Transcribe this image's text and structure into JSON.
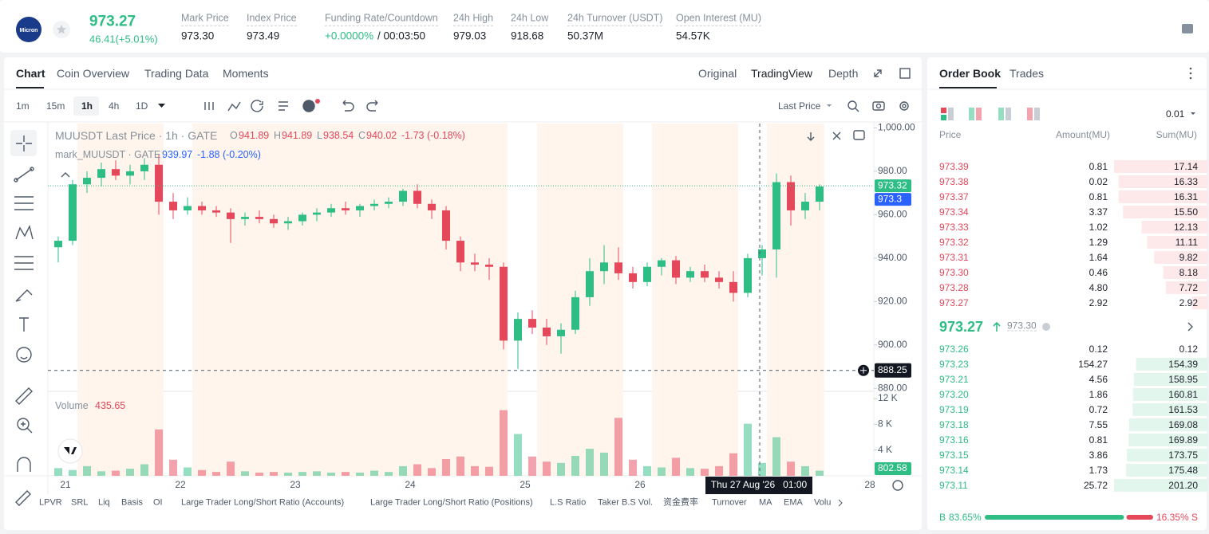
{
  "header": {
    "logo": "Micron",
    "price": "973.27",
    "change": "46.41(+5.01%)",
    "stats": [
      {
        "label": "Mark Price",
        "value": "973.30"
      },
      {
        "label": "Index Price",
        "value": "973.49"
      },
      {
        "label": "Funding Rate/Countdown",
        "value": "+0.0000%",
        "extra": "/ 00:03:50"
      },
      {
        "label": "24h High",
        "value": "979.03"
      },
      {
        "label": "24h Low",
        "value": "918.68"
      },
      {
        "label": "24h Turnover (USDT)",
        "value": "50.37M"
      },
      {
        "label": "Open Interest (MU)",
        "value": "54.57K"
      }
    ]
  },
  "chart_tabs": [
    "Chart",
    "Coin Overview",
    "Trading Data",
    "Moments"
  ],
  "view_tabs": [
    "Original",
    "TradingView",
    "Depth"
  ],
  "intervals": [
    "1m",
    "15m",
    "1h",
    "4h",
    "1D"
  ],
  "active_interval": "1h",
  "price_source": "Last Price",
  "chart": {
    "type": "candlestick",
    "legend": {
      "symbol": "MUUSDT Last Price · 1h · GATE",
      "ohlc_labels": [
        "O",
        "H",
        "L",
        "C"
      ],
      "ohlc": [
        "941.89",
        "941.89",
        "938.54",
        "940.02"
      ],
      "change": "-1.73 (-0.18%)",
      "mark_symbol": "mark_MUUSDT · GATE",
      "mark_value": "939.97",
      "mark_change": "-1.88 (-0.20%)"
    },
    "volume_title": "Volume",
    "volume_value": "435.65",
    "up_color": "#2dbd85",
    "down_color": "#e5475b",
    "grid": false,
    "ylim": [
      879,
      1002
    ],
    "yticks": [
      {
        "value": 880,
        "label": "880.00"
      },
      {
        "value": 900,
        "label": "900.00"
      },
      {
        "value": 920,
        "label": "920.00"
      },
      {
        "value": 940,
        "label": "940.00"
      },
      {
        "value": 960,
        "label": "960.00"
      },
      {
        "value": 980,
        "label": "980.00"
      },
      {
        "value": 1000,
        "label": "1,000.00"
      }
    ],
    "vlim": [
      0,
      13000
    ],
    "vticks": [
      {
        "value": 4000,
        "label": "4 K"
      },
      {
        "value": 8000,
        "label": "8 K"
      },
      {
        "value": 12000,
        "label": "12 K"
      }
    ],
    "xticks": [
      "21",
      "22",
      "23",
      "24",
      "25",
      "26",
      null,
      "28"
    ],
    "candles": [
      [
        945,
        950,
        938,
        948
      ],
      [
        948,
        976,
        946,
        974
      ],
      [
        974,
        980,
        970,
        977
      ],
      [
        977,
        984,
        973,
        981
      ],
      [
        981,
        985,
        976,
        978
      ],
      [
        978,
        983,
        974,
        980
      ],
      [
        980,
        986,
        976,
        983
      ],
      [
        983,
        988,
        960,
        966
      ],
      [
        966,
        970,
        958,
        962
      ],
      [
        962,
        968,
        960,
        964
      ],
      [
        964,
        966,
        960,
        962
      ],
      [
        962,
        964,
        959,
        961
      ],
      [
        961,
        963,
        947,
        958
      ],
      [
        958,
        961,
        955,
        959
      ],
      [
        959,
        962,
        956,
        958
      ],
      [
        958,
        960,
        954,
        956
      ],
      [
        956,
        959,
        953,
        957
      ],
      [
        957,
        961,
        955,
        960
      ],
      [
        960,
        963,
        957,
        961
      ],
      [
        961,
        965,
        959,
        963
      ],
      [
        963,
        966,
        960,
        962
      ],
      [
        962,
        965,
        959,
        964
      ],
      [
        964,
        967,
        962,
        965
      ],
      [
        965,
        968,
        963,
        966
      ],
      [
        966,
        972,
        964,
        971
      ],
      [
        971,
        974,
        963,
        965
      ],
      [
        965,
        967,
        958,
        962
      ],
      [
        962,
        964,
        944,
        948
      ],
      [
        948,
        950,
        934,
        938
      ],
      [
        938,
        942,
        934,
        937
      ],
      [
        937,
        940,
        930,
        936
      ],
      [
        936,
        938,
        898,
        902
      ],
      [
        902,
        915,
        889,
        912
      ],
      [
        912,
        916,
        905,
        908
      ],
      [
        908,
        912,
        900,
        904
      ],
      [
        904,
        910,
        896,
        907
      ],
      [
        907,
        925,
        905,
        922
      ],
      [
        922,
        940,
        918,
        934
      ],
      [
        934,
        946,
        928,
        938
      ],
      [
        938,
        945,
        930,
        933
      ],
      [
        933,
        936,
        926,
        929
      ],
      [
        929,
        938,
        927,
        936
      ],
      [
        936,
        940,
        932,
        939
      ],
      [
        939,
        941,
        928,
        931
      ],
      [
        931,
        936,
        929,
        934
      ],
      [
        934,
        937,
        929,
        931
      ],
      [
        931,
        934,
        926,
        929
      ],
      [
        929,
        934,
        920,
        924
      ],
      [
        924,
        942,
        922,
        940
      ],
      [
        940,
        946,
        932,
        944
      ],
      [
        944,
        979,
        931,
        975
      ],
      [
        975,
        978,
        955,
        962
      ],
      [
        962,
        970,
        958,
        966
      ],
      [
        966,
        974,
        962,
        973
      ]
    ],
    "volumes": [
      1200,
      900,
      1500,
      700,
      800,
      1100,
      1800,
      7200,
      2500,
      1300,
      900,
      600,
      2200,
      700,
      500,
      600,
      500,
      600,
      700,
      500,
      600,
      500,
      800,
      600,
      1500,
      1800,
      1200,
      2600,
      3000,
      1500,
      1400,
      10200,
      6500,
      3000,
      2200,
      2000,
      3100,
      4200,
      3600,
      9000,
      2500,
      1500,
      1300,
      2800,
      1200,
      1100,
      1500,
      3500,
      8100,
      2000,
      6000,
      2200,
      1500,
      802.58
    ],
    "last_price": 973.32,
    "mark_price": 973.3,
    "crosshair_price": 888.25,
    "crosshair_time": "Thu 27 Aug '26   01:00"
  },
  "indicators": [
    "LPVR",
    "SRL",
    "Liq",
    "Basis",
    "OI",
    "Large Trader Long/Short Ratio (Accounts)",
    "Large Trader Long/Short Ratio (Positions)",
    "L.S Ratio",
    "Taker B.S Vol.",
    "资金费率",
    "Turnover",
    "MA",
    "EMA",
    "Volu"
  ],
  "order_book": {
    "tabs": [
      "Order Book",
      "Trades"
    ],
    "tick_size": "0.01",
    "columns": [
      "Price",
      "Amount(MU)",
      "Sum(MU)"
    ],
    "asks": [
      [
        "973.39",
        "0.81",
        "17.14"
      ],
      [
        "973.38",
        "0.02",
        "16.33"
      ],
      [
        "973.37",
        "0.81",
        "16.31"
      ],
      [
        "973.34",
        "3.37",
        "15.50"
      ],
      [
        "973.33",
        "1.02",
        "12.13"
      ],
      [
        "973.32",
        "1.29",
        "11.11"
      ],
      [
        "973.31",
        "1.64",
        "9.82"
      ],
      [
        "973.30",
        "0.46",
        "8.18"
      ],
      [
        "973.28",
        "4.80",
        "7.72"
      ],
      [
        "973.27",
        "2.92",
        "2.92"
      ]
    ],
    "last": "973.27",
    "mark": "973.30",
    "bids": [
      [
        "973.26",
        "0.12",
        "0.12"
      ],
      [
        "973.23",
        "154.27",
        "154.39"
      ],
      [
        "973.21",
        "4.56",
        "158.95"
      ],
      [
        "973.20",
        "1.86",
        "160.81"
      ],
      [
        "973.19",
        "0.72",
        "161.53"
      ],
      [
        "973.18",
        "7.55",
        "169.08"
      ],
      [
        "973.16",
        "0.81",
        "169.89"
      ],
      [
        "973.15",
        "3.86",
        "173.75"
      ],
      [
        "973.14",
        "1.73",
        "175.48"
      ],
      [
        "973.11",
        "25.72",
        "201.20"
      ]
    ],
    "buy_label": "B",
    "buy_ratio": {
      "value": 83.65,
      "label": "83.65%"
    },
    "sell_ratio": {
      "value": 16.35,
      "label": "16.35%"
    },
    "sell_label": "S"
  }
}
